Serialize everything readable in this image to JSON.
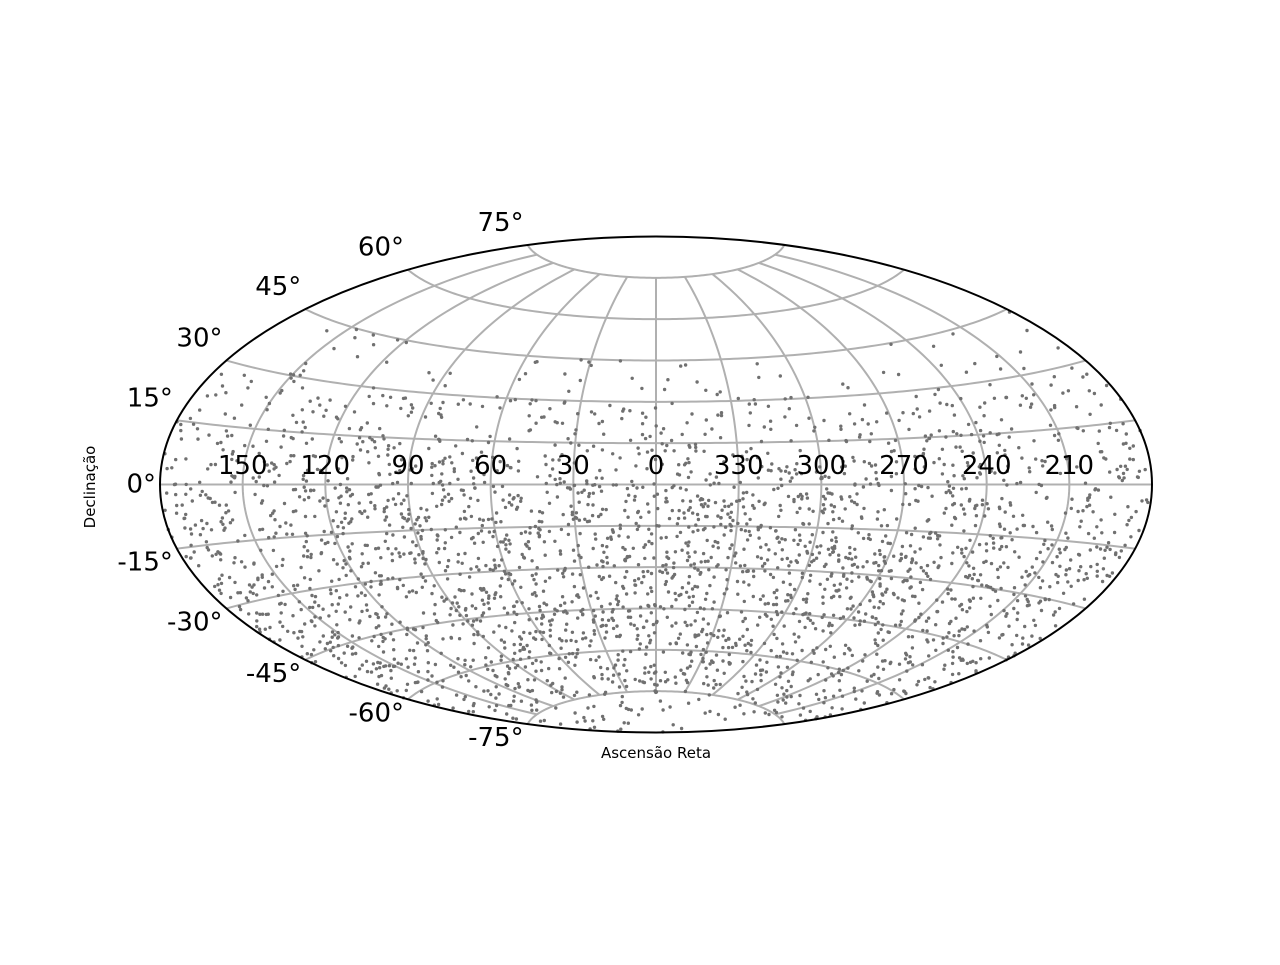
{
  "chart_data": {
    "type": "scatter",
    "projection": "aitoff",
    "xlabel": "Ascensão Reta",
    "ylabel": "Declinação",
    "x_ticks": [
      "150",
      "120",
      "90",
      "60",
      "30",
      "0",
      "330",
      "300",
      "270",
      "240",
      "210"
    ],
    "y_ticks": [
      "-75°",
      "-60°",
      "-45°",
      "-30°",
      "-15°",
      "0°",
      "15°",
      "30°",
      "45°",
      "60°",
      "75°"
    ],
    "xlim": [
      -180,
      180
    ],
    "ylim": [
      -90,
      90
    ],
    "grid": true,
    "point_color": "#707070",
    "grid_color": "#b0b0b0",
    "point_count_estimate": 3000,
    "declination_density": [
      {
        "dec_range": [
          -90,
          -75
        ],
        "relative_density": 0.55
      },
      {
        "dec_range": [
          -75,
          -60
        ],
        "relative_density": 1.0
      },
      {
        "dec_range": [
          -60,
          -45
        ],
        "relative_density": 1.0
      },
      {
        "dec_range": [
          -45,
          -30
        ],
        "relative_density": 0.95
      },
      {
        "dec_range": [
          -30,
          -15
        ],
        "relative_density": 0.9
      },
      {
        "dec_range": [
          -15,
          0
        ],
        "relative_density": 0.75
      },
      {
        "dec_range": [
          0,
          15
        ],
        "relative_density": 0.55
      },
      {
        "dec_range": [
          15,
          30
        ],
        "relative_density": 0.35
      },
      {
        "dec_range": [
          30,
          45
        ],
        "relative_density": 0.12
      },
      {
        "dec_range": [
          45,
          90
        ],
        "relative_density": 0.0
      }
    ]
  }
}
